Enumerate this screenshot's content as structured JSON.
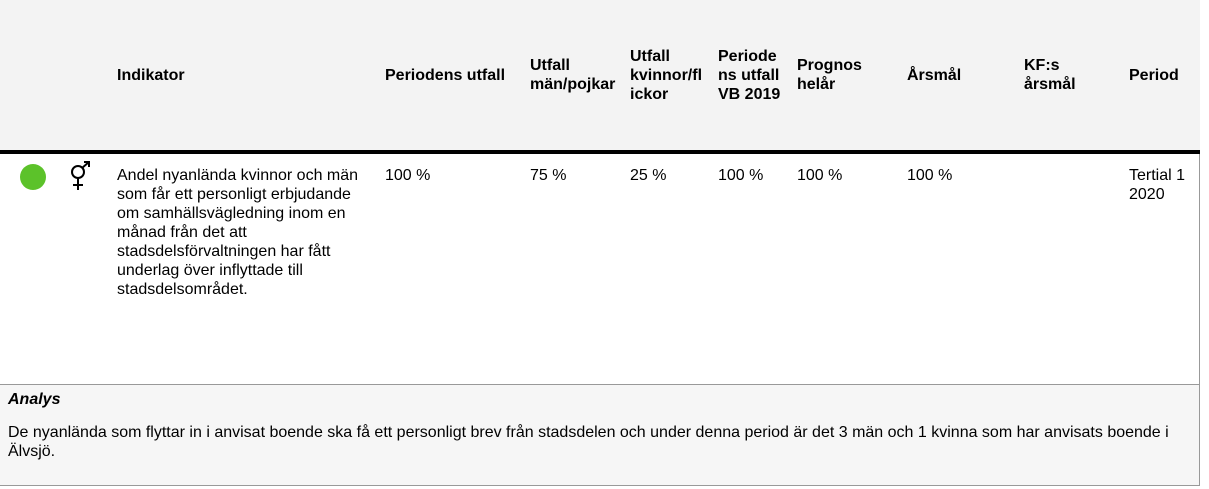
{
  "table": {
    "headers": [
      "Indikator",
      "Periodens utfall",
      "Utfall män/pojkar",
      "Utfall kvinnor/flickor",
      "Periodens utfall VB 2019",
      "Prognos helår",
      "Årsmål",
      "KF:s årsmål",
      "Period"
    ],
    "rows": [
      [
        "Andel nyanlända kvinnor och män som får ett personligt erbjudande om samhällsvägledning inom en månad från det att stadsdelsförvaltningen har fått underlag över inflyttade till stadsdelsområdet.",
        "100 %",
        "75 %",
        "25 %",
        "100 %",
        "100 %",
        "100 %",
        null,
        "Tertial 1 2020"
      ]
    ]
  },
  "analysis": {
    "title": "Analys",
    "text": "De nyanlända som flyttar in i anvisat boende ska få ett personligt brev från stadsdelen och under denna period är det 3 män och 1 kvinna som har anvisats boende i Älvsjö."
  }
}
